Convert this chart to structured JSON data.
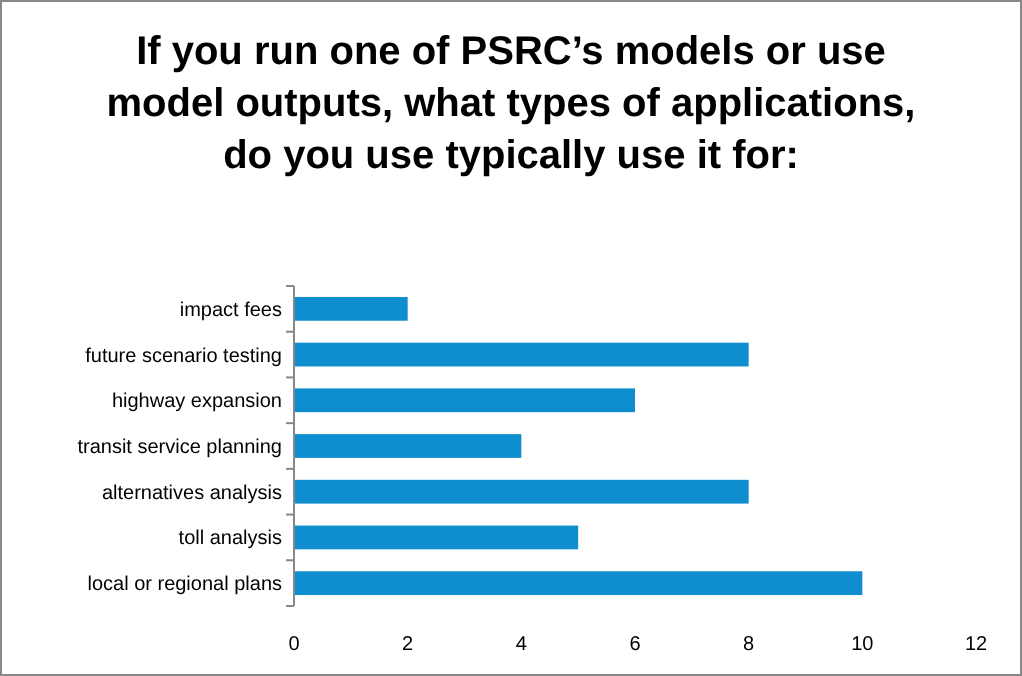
{
  "chart_data": {
    "type": "bar",
    "orientation": "horizontal",
    "title": "If you run one of PSRC’s models or use model outputs, what types of applications, do you use typically use it for:",
    "categories": [
      "impact fees",
      "future scenario testing",
      "highway expansion",
      "transit service planning",
      "alternatives analysis",
      "toll analysis",
      "local or regional plans"
    ],
    "values": [
      2,
      8,
      6,
      4,
      8,
      5,
      10
    ],
    "color": "#0e8ecf",
    "xlim": [
      0,
      12
    ],
    "xticks": [
      0,
      2,
      4,
      6,
      8,
      10,
      12
    ],
    "grid": false
  }
}
